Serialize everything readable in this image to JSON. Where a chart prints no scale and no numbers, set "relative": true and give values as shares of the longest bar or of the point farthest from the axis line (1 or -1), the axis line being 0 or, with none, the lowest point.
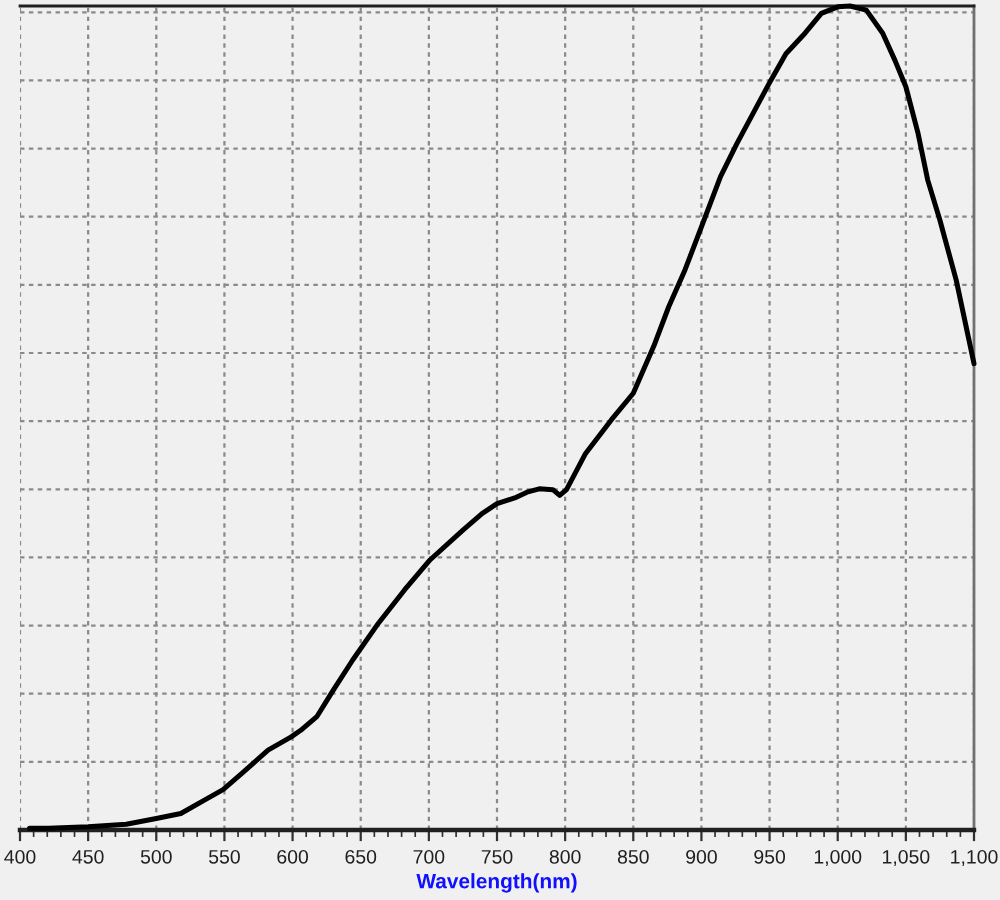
{
  "chart_data": {
    "type": "line",
    "xlabel": "Wavelength(nm)",
    "relative": true,
    "grid": true,
    "xlim": [
      400,
      1100
    ],
    "xticks": [
      400,
      450,
      500,
      550,
      600,
      650,
      700,
      750,
      800,
      850,
      900,
      950,
      {
        "value": 1000,
        "label": "1,000"
      },
      {
        "value": 1050,
        "label": "1,050"
      },
      {
        "value": 1100,
        "label": "1,100"
      }
    ],
    "x": [
      407,
      421,
      450,
      478,
      500,
      518,
      535,
      549,
      563,
      582,
      599,
      606,
      618,
      630,
      644,
      663,
      682,
      701,
      725,
      739,
      750,
      763,
      772,
      781,
      791,
      796,
      801,
      815,
      834,
      850,
      865,
      876,
      888,
      900,
      914,
      926,
      938,
      951,
      962,
      976,
      988,
      1000,
      1009,
      1021,
      1033,
      1042,
      1050,
      1059,
      1066,
      1075,
      1087,
      1100
    ],
    "series": [
      {
        "color": "#000000",
        "values": [
          0.002,
          0.002,
          0.004,
          0.007,
          0.014,
          0.02,
          0.036,
          0.049,
          0.069,
          0.097,
          0.113,
          0.121,
          0.138,
          0.17,
          0.206,
          0.251,
          0.291,
          0.328,
          0.364,
          0.384,
          0.396,
          0.403,
          0.41,
          0.414,
          0.413,
          0.406,
          0.413,
          0.457,
          0.498,
          0.53,
          0.587,
          0.635,
          0.68,
          0.732,
          0.793,
          0.833,
          0.87,
          0.91,
          0.942,
          0.967,
          0.991,
          0.999,
          1.0,
          0.995,
          0.967,
          0.934,
          0.902,
          0.845,
          0.789,
          0.74,
          0.667,
          0.566
        ]
      }
    ]
  }
}
